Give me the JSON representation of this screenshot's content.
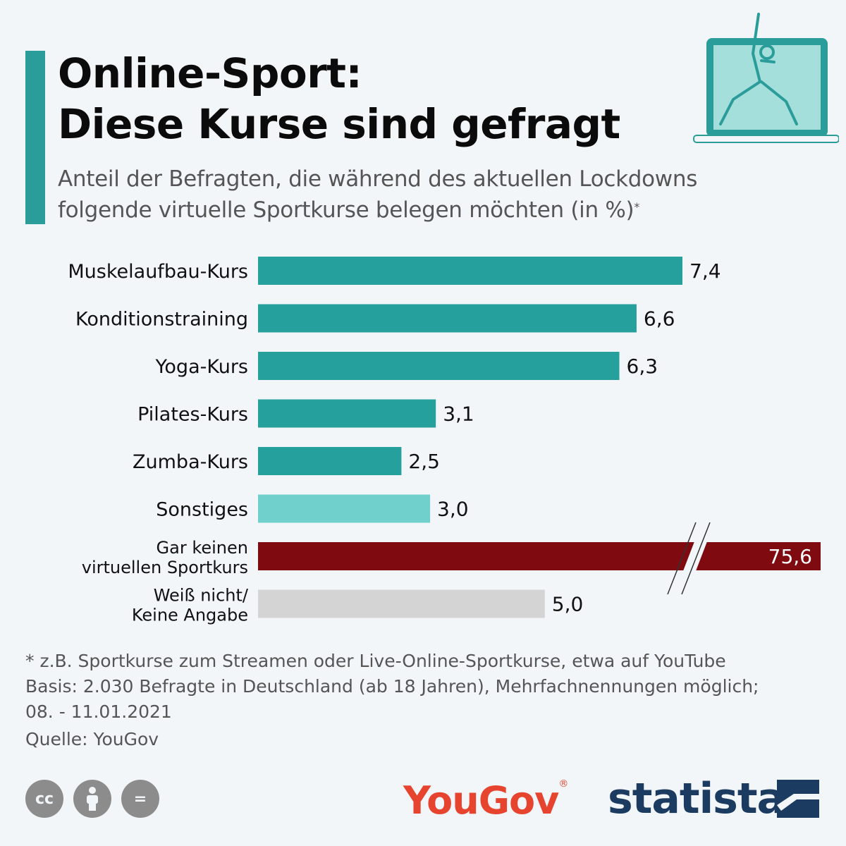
{
  "header": {
    "title_line1": "Online-Sport:",
    "title_line2": "Diese Kurse sind gefragt",
    "subtitle_line1": "Anteil der Befragten, die während des aktuellen Lockdowns",
    "subtitle_line2": "folgende virtuelle Sportkurse belegen möchten (in %)",
    "subtitle_mark": "*"
  },
  "chart_data": {
    "type": "bar",
    "orientation": "horizontal",
    "categories": [
      "Muskelaufbau-Kurs",
      "Konditionstraining",
      "Yoga-Kurs",
      "Pilates-Kurs",
      "Zumba-Kurs",
      "Sonstiges",
      "Gar keinen virtuellen Sportkurs",
      "Weiß nicht/ Keine Angabe"
    ],
    "category_lines": [
      [
        "Muskelaufbau-Kurs"
      ],
      [
        "Konditionstraining"
      ],
      [
        "Yoga-Kurs"
      ],
      [
        "Pilates-Kurs"
      ],
      [
        "Zumba-Kurs"
      ],
      [
        "Sonstiges"
      ],
      [
        "Gar keinen",
        "virtuellen Sportkurs"
      ],
      [
        "Weiß nicht/",
        "Keine Angabe"
      ]
    ],
    "values": [
      7.4,
      6.6,
      6.3,
      3.1,
      2.5,
      3.0,
      75.6,
      5.0
    ],
    "value_labels": [
      "7,4",
      "6,6",
      "6,3",
      "3,1",
      "2,5",
      "3,0",
      "75,6",
      "5,0"
    ],
    "colors": [
      "#25a09c",
      "#25a09c",
      "#25a09c",
      "#25a09c",
      "#25a09c",
      "#6fd0cc",
      "#7f0a0f",
      "#d4d4d4"
    ],
    "broken_axis_category": "Gar keinen virtuellen Sportkurs",
    "xlim": [
      0,
      7.4
    ],
    "grid": false,
    "legend": "none"
  },
  "footer": {
    "note_line1": "* z.B. Sportkurse zum Streamen oder Live-Online-Sportkurse, etwa auf YouTube",
    "note_line2": "Basis: 2.030 Befragte in Deutschland (ab 18 Jahren), Mehrfachnennungen möglich;",
    "note_line3": "08. - 11.01.2021",
    "source": "Quelle: YouGov"
  },
  "logos": {
    "cc_icons": [
      "cc-icon",
      "attribution-icon",
      "no-derivatives-icon"
    ],
    "cc_label": "cc",
    "nd_label": "=",
    "yougov": "YouGov",
    "statista": "statista"
  }
}
